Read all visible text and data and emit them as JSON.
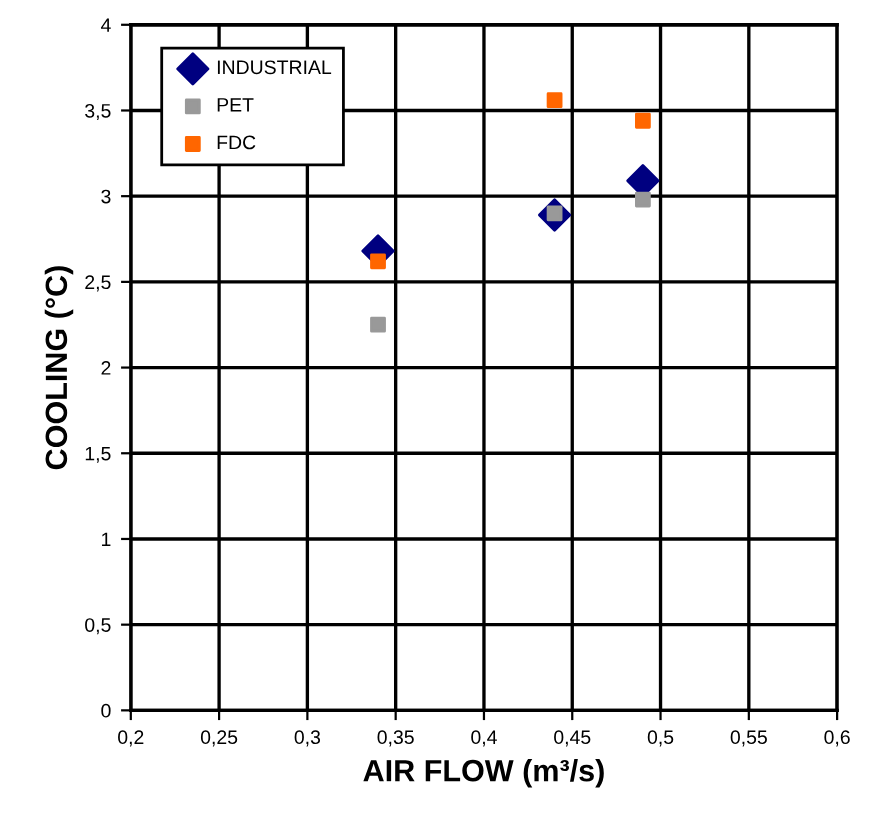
{
  "chart_data": {
    "type": "scatter",
    "xlabel": "AIR FLOW (m³/s)",
    "ylabel": "COOLING (°C)",
    "x": [
      0.34,
      0.44,
      0.49
    ],
    "series": [
      {
        "name": "INDUSTRIAL",
        "color": "#000080",
        "marker": "diamond",
        "values": [
          2.68,
          2.89,
          3.09
        ]
      },
      {
        "name": "PET",
        "color": "#999999",
        "marker": "square",
        "values": [
          2.25,
          2.9,
          2.98
        ]
      },
      {
        "name": "FDC",
        "color": "#ff6600",
        "marker": "square",
        "values": [
          2.62,
          3.56,
          3.44
        ]
      }
    ],
    "xlim": [
      0.2,
      0.6
    ],
    "ylim": [
      0,
      4
    ],
    "xticks": [
      {
        "value": 0.2,
        "label": "0,2"
      },
      {
        "value": 0.25,
        "label": "0,25"
      },
      {
        "value": 0.3,
        "label": "0,3"
      },
      {
        "value": 0.35,
        "label": "0,35"
      },
      {
        "value": 0.4,
        "label": "0,4"
      },
      {
        "value": 0.45,
        "label": "0,45"
      },
      {
        "value": 0.5,
        "label": "0,5"
      },
      {
        "value": 0.55,
        "label": "0,55"
      },
      {
        "value": 0.6,
        "label": "0,6"
      }
    ],
    "yticks": [
      0,
      {
        "value": 0.5,
        "label": "0,5"
      },
      1,
      {
        "value": 1.5,
        "label": "1,5"
      },
      2,
      {
        "value": 2.5,
        "label": "2,5"
      },
      3,
      {
        "value": 3.5,
        "label": "3,5"
      },
      4
    ],
    "grid": true,
    "legend": "top left"
  }
}
